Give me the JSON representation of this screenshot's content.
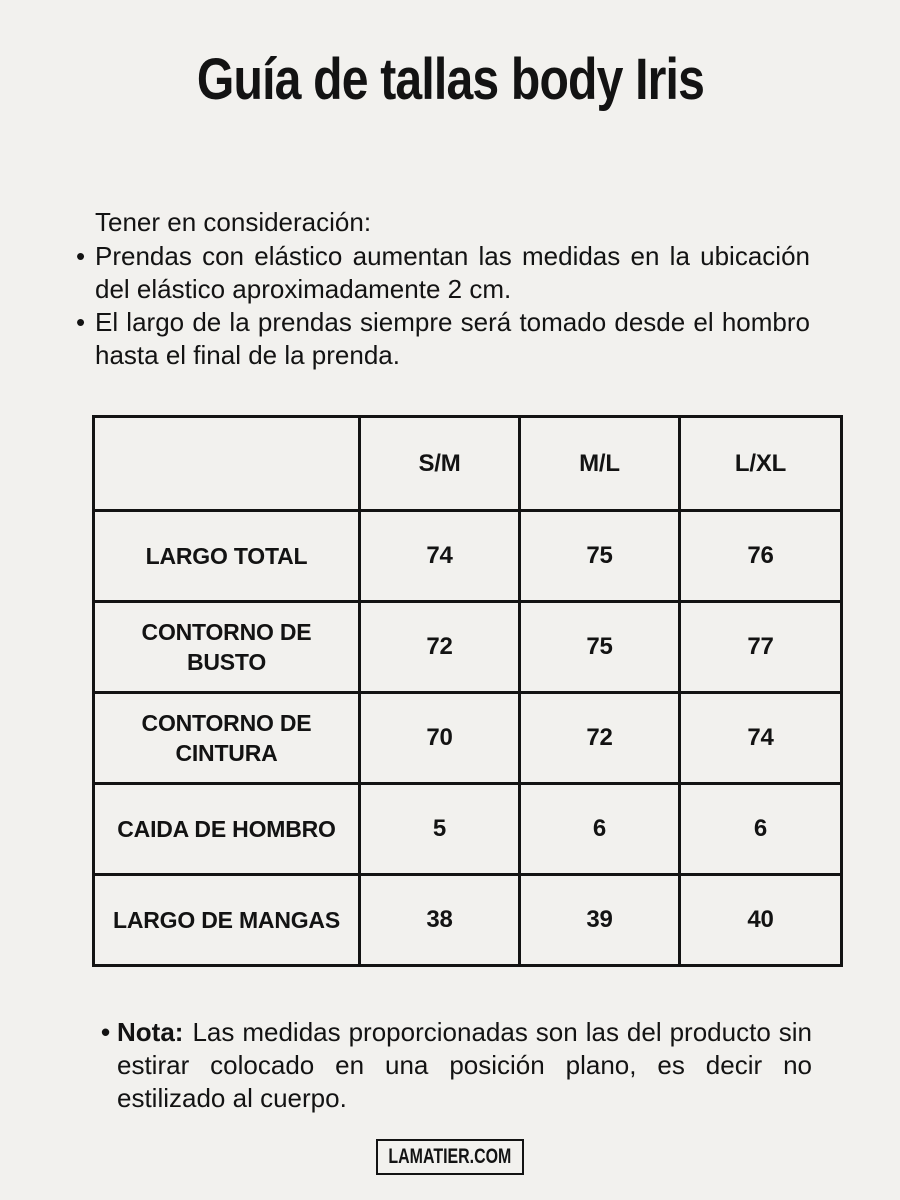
{
  "page": {
    "title": "Guía de tallas body Iris",
    "background_color": "#f2f1ee",
    "text_color": "#131313"
  },
  "considerations": {
    "heading": "Tener en consideración:",
    "bullets": [
      "Prendas con elástico aumentan las medidas en la ubicación del elástico aproximadamente 2 cm.",
      "El largo de la prendas siempre será tomado desde el hombro hasta el final de la prenda."
    ]
  },
  "size_table": {
    "columns": [
      "",
      "S/M",
      "M/L",
      "L/XL"
    ],
    "rows": [
      {
        "label": "LARGO TOTAL",
        "values": [
          "74",
          "75",
          "76"
        ]
      },
      {
        "label": "CONTORNO DE\nBUSTO",
        "values": [
          "72",
          "75",
          "77"
        ]
      },
      {
        "label": "CONTORNO DE\nCINTURA",
        "values": [
          "70",
          "72",
          "74"
        ]
      },
      {
        "label": "CAIDA DE HOMBRO",
        "values": [
          "5",
          "6",
          "6"
        ]
      },
      {
        "label": "LARGO DE MANGAS",
        "values": [
          "38",
          "39",
          "40"
        ]
      }
    ]
  },
  "note": {
    "label": "Nota:",
    "text": "Las medidas proporcionadas son las del producto sin estirar colocado en una posición plano, es decir no estilizado al cuerpo."
  },
  "footer": {
    "brand": "LAMATIER.COM"
  }
}
